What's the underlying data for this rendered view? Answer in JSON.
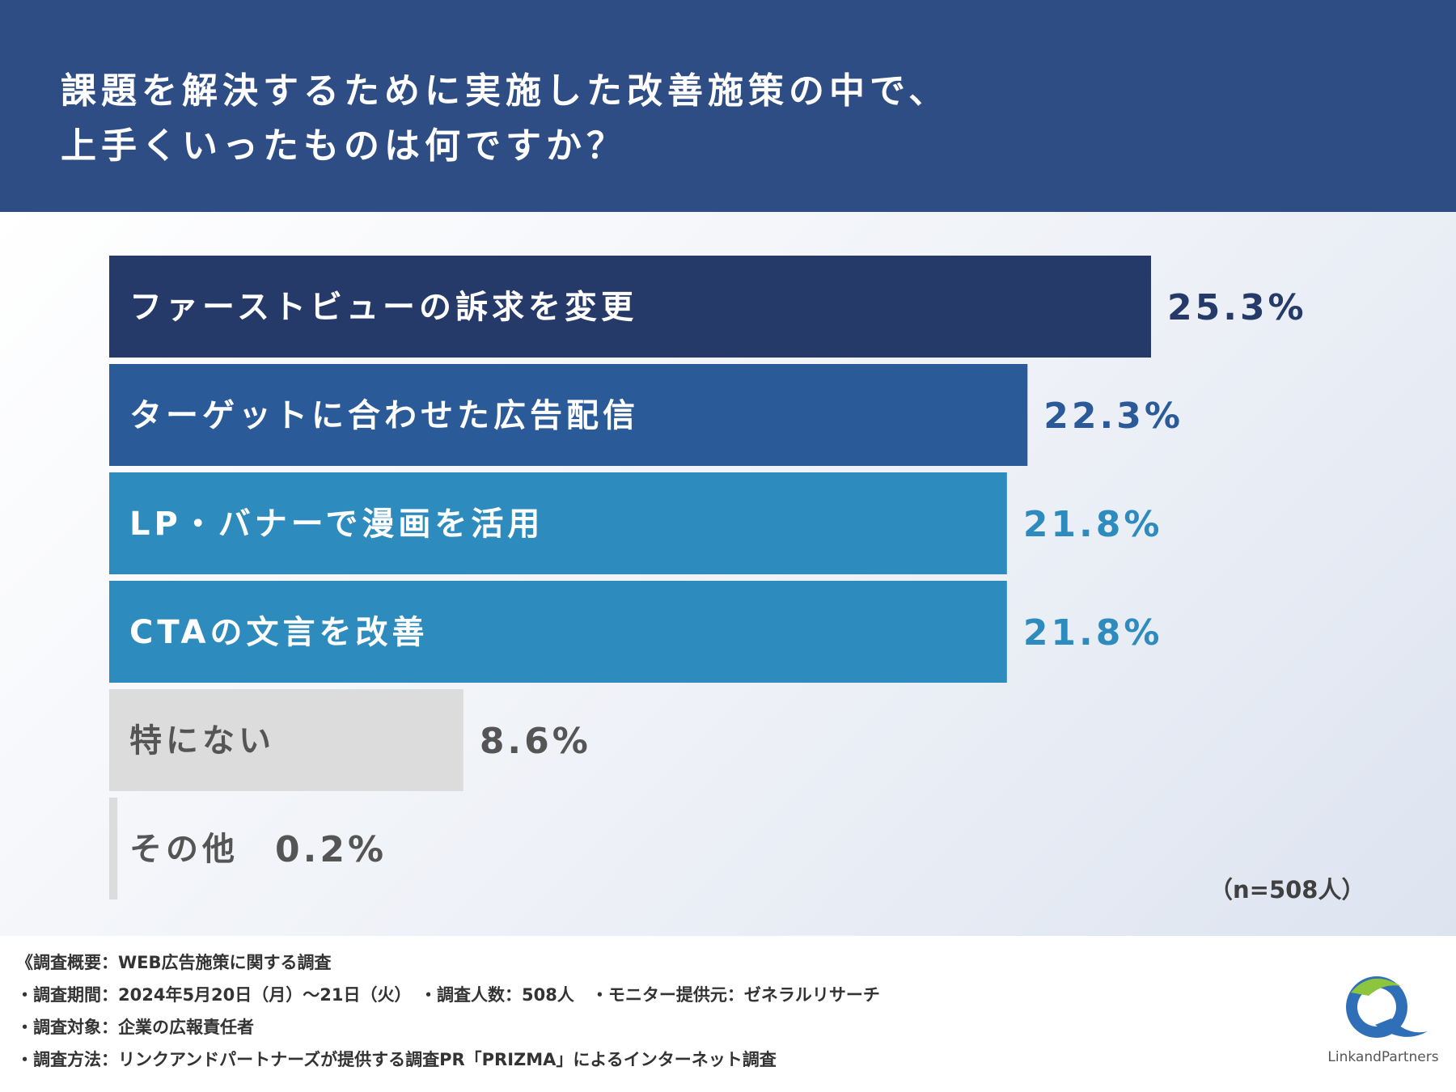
{
  "header": {
    "title_line1": "課題を解決するために実施した改善施策の中で、",
    "title_line2": "上手くいったものは何ですか？"
  },
  "chart_data": {
    "type": "bar",
    "orientation": "horizontal",
    "categories": [
      "ファーストビューの訴求を変更",
      "ターゲットに合わせた広告配信",
      "LP・バナーで漫画を活用",
      "CTAの文言を改善",
      "特にない",
      "その他"
    ],
    "values": [
      25.3,
      22.3,
      21.8,
      21.8,
      8.6,
      0.2
    ],
    "value_labels": [
      "25.3%",
      "22.3%",
      "21.8%",
      "21.8%",
      "8.6%",
      "0.2%"
    ],
    "unit": "%",
    "xlim": [
      0,
      25.3
    ],
    "bar_colors": [
      "#263a6a",
      "#2b5a98",
      "#2e8bbd",
      "#2e8bbd",
      "#dcdcdc",
      "#dcdcdc"
    ],
    "label_colors": [
      "#ffffff",
      "#ffffff",
      "#ffffff",
      "#ffffff",
      "#555555",
      "#555555"
    ],
    "value_colors": [
      "#263a6a",
      "#2b5a98",
      "#2e8bbd",
      "#2e8bbd",
      "#555555",
      "#555555"
    ],
    "sample_size": "（n=508人）"
  },
  "footer": {
    "note1": "《調査概要：WEB広告施策に関する調査",
    "note2": "・調査期間：2024年5月20日（月）〜21日（火）　・調査人数：508人　・モニター提供元：ゼネラルリサーチ",
    "note3": "・調査対象：企業の広報責任者",
    "note4": "・調査方法：リンクアンドパートナーズが提供する調査PR「PRIZMA」によるインターネット調査"
  },
  "logo": {
    "text": "LinkandPartners",
    "icon": "link-and-partners-logo-icon"
  }
}
